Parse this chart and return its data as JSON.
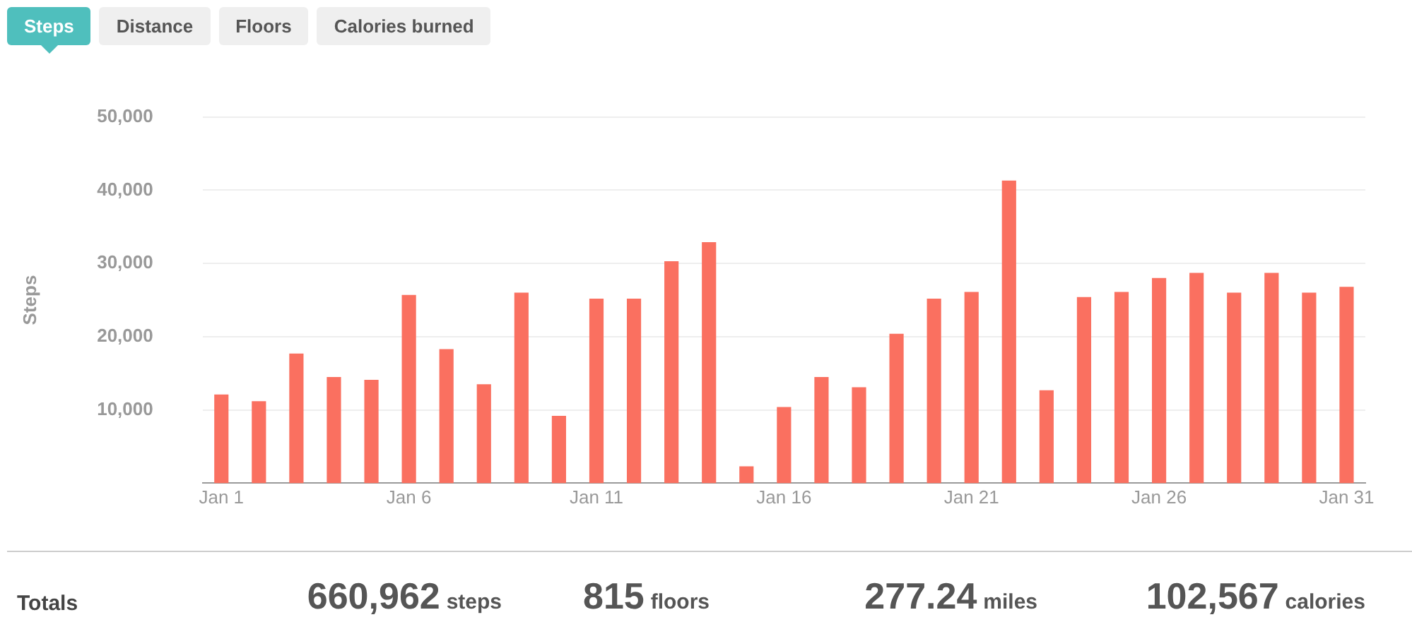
{
  "chart_data": {
    "type": "bar",
    "ylabel": "Steps",
    "categories": [
      "Jan 1",
      null,
      null,
      null,
      null,
      "Jan 6",
      null,
      null,
      null,
      null,
      "Jan 11",
      null,
      null,
      null,
      null,
      "Jan 16",
      null,
      null,
      null,
      null,
      "Jan 21",
      null,
      null,
      null,
      null,
      "Jan 26",
      null,
      null,
      null,
      null,
      "Jan 31"
    ],
    "values": [
      12100,
      11200,
      17700,
      14500,
      14100,
      25700,
      18300,
      13500,
      26000,
      9200,
      25200,
      25200,
      30300,
      32900,
      2300,
      10400,
      14500,
      13100,
      20400,
      25200,
      26100,
      41300,
      12700,
      25400,
      26100,
      28000,
      28700,
      26000,
      28700,
      26000,
      26800
    ],
    "color": "#fa7060",
    "ylim": [
      0,
      50000
    ],
    "yticks": [
      {
        "value": 10000,
        "label": "10,000"
      },
      {
        "value": 20000,
        "label": "20,000"
      },
      {
        "value": 30000,
        "label": "30,000"
      },
      {
        "value": 40000,
        "label": "40,000"
      },
      {
        "value": 50000,
        "label": "50,000"
      }
    ],
    "grid": "y",
    "annotations": [
      "Steps",
      "Distance",
      "Floors",
      "Calories burned",
      "Totals",
      "660,962 steps",
      "815 floors",
      "277.24 miles",
      "102,567 calories"
    ]
  }
}
